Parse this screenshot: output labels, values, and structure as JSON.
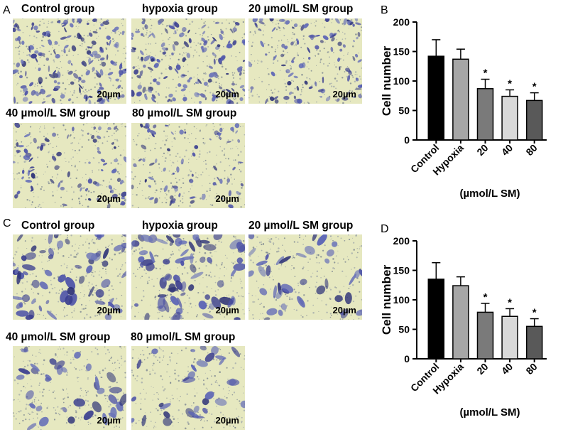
{
  "panels": {
    "A": "A",
    "B": "B",
    "C": "C",
    "D": "D"
  },
  "micrographs": {
    "top": [
      {
        "title": "Control group",
        "scale": "20µm",
        "density": 0.95,
        "cell_size": "small"
      },
      {
        "title": "hypoxia group",
        "scale": "20µm",
        "density": 0.85,
        "cell_size": "small"
      },
      {
        "title": "20 µmol/L SM group",
        "scale": "20µm",
        "density": 0.6,
        "cell_size": "small"
      },
      {
        "title": "40 µmol/L SM group",
        "scale": "20µm",
        "density": 0.45,
        "cell_size": "small"
      },
      {
        "title": "80 µmol/L SM group",
        "scale": "20µm",
        "density": 0.4,
        "cell_size": "small"
      }
    ],
    "bottom": [
      {
        "title": "Control group",
        "scale": "20µm",
        "density": 0.9,
        "cell_size": "large"
      },
      {
        "title": "hypoxia group",
        "scale": "20µm",
        "density": 1.0,
        "cell_size": "large"
      },
      {
        "title": "20 µmol/L SM group",
        "scale": "20µm",
        "density": 0.55,
        "cell_size": "large"
      },
      {
        "title": "40 µmol/L SM group",
        "scale": "20µm",
        "density": 0.5,
        "cell_size": "large"
      },
      {
        "title": "80 µmol/L SM group",
        "scale": "20µm",
        "density": 0.45,
        "cell_size": "large"
      }
    ]
  },
  "chart_data": [
    {
      "type": "bar",
      "panel": "B",
      "categories": [
        "Control",
        "Hypoxia",
        "20",
        "40",
        "80"
      ],
      "values": [
        142,
        137,
        87,
        74,
        67
      ],
      "errors": [
        28,
        17,
        16,
        11,
        13
      ],
      "significance": [
        "",
        "",
        "*",
        "*",
        "*"
      ],
      "colors": [
        "#000000",
        "#a6a6a6",
        "#7a7a7a",
        "#d9d9d9",
        "#595959"
      ],
      "ylabel": "Cell number",
      "xlabel": "(µmol/L SM)",
      "ylim": [
        0,
        200
      ],
      "yticks": [
        0,
        50,
        100,
        150,
        200
      ]
    },
    {
      "type": "bar",
      "panel": "D",
      "categories": [
        "Control",
        "Hypoxia",
        "20",
        "40",
        "80"
      ],
      "values": [
        135,
        124,
        79,
        72,
        55
      ],
      "errors": [
        28,
        15,
        15,
        13,
        13
      ],
      "significance": [
        "",
        "",
        "*",
        "*",
        "*"
      ],
      "colors": [
        "#000000",
        "#a6a6a6",
        "#7a7a7a",
        "#d9d9d9",
        "#595959"
      ],
      "ylabel": "Cell number",
      "xlabel": "(µmol/L SM)",
      "ylim": [
        0,
        200
      ],
      "yticks": [
        0,
        50,
        100,
        150,
        200
      ]
    }
  ]
}
